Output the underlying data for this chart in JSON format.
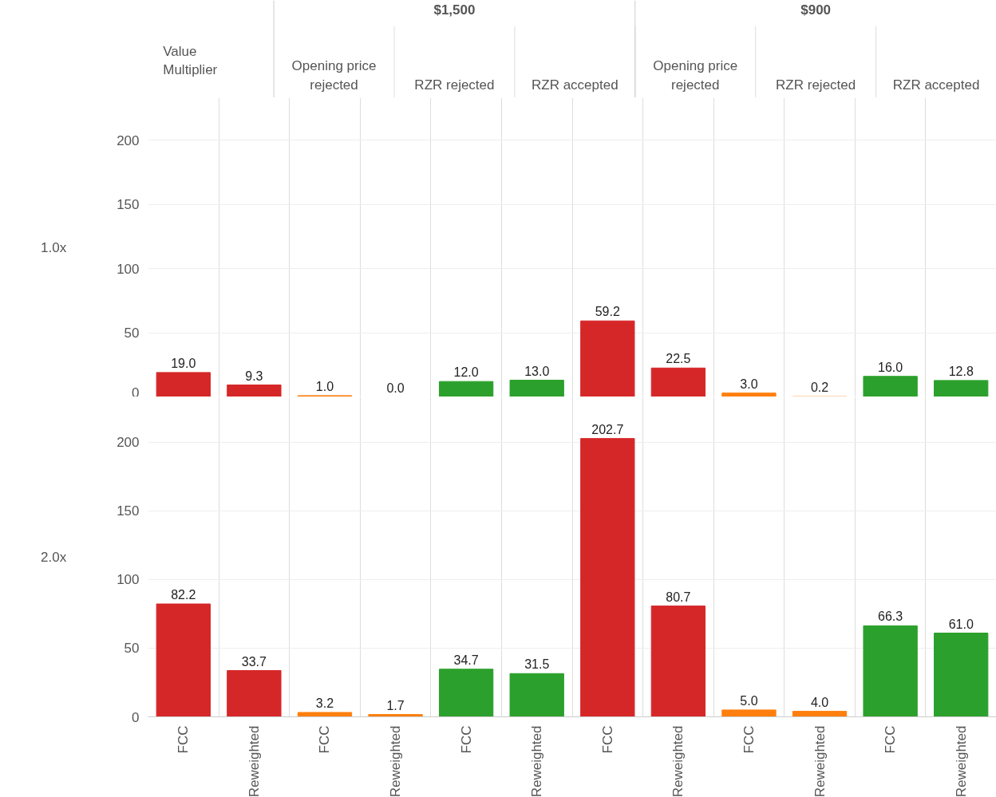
{
  "chart_data": [
    {
      "type": "bar",
      "ylabel": "1.0x",
      "tick_labels": "y",
      "grid": true,
      "ylim": [
        0,
        233
      ],
      "yticks": [
        0,
        50,
        100,
        150,
        200
      ],
      "annotations": [
        "Value Multiplier",
        "$1,500",
        "$900",
        "Opening price rejected",
        "RZR rejected",
        "RZR accepted",
        "Opening price rejected",
        "RZR rejected",
        "RZR accepted"
      ],
      "categories": [
        "FCC",
        "Reweighted",
        "FCC",
        "Reweighted",
        "FCC",
        "Reweighted",
        "FCC",
        "Reweighted",
        "FCC",
        "Reweighted",
        "FCC",
        "Reweighted"
      ],
      "values": [
        19.0,
        9.3,
        1.0,
        0.0,
        12.0,
        13.0,
        59.2,
        22.5,
        3.0,
        0.2,
        16.0,
        12.8
      ],
      "value_labels": [
        "19.0",
        "9.3",
        "1.0",
        "0.0",
        "12.0",
        "13.0",
        "59.2",
        "22.5",
        "3.0",
        "0.2",
        "16.0",
        "12.8"
      ],
      "colors": [
        "#d62728",
        "#d62728",
        "#ff7f0e",
        "#ff7f0e",
        "#2ca02c",
        "#2ca02c",
        "#d62728",
        "#d62728",
        "#ff7f0e",
        "#ff7f0e",
        "#2ca02c",
        "#2ca02c"
      ]
    },
    {
      "type": "bar",
      "ylabel": "2.0x",
      "grid": true,
      "ylim": [
        0,
        233
      ],
      "yticks": [
        0,
        50,
        100,
        150,
        200
      ],
      "categories": [
        "FCC",
        "Reweighted",
        "FCC",
        "Reweighted",
        "FCC",
        "Reweighted",
        "FCC",
        "Reweighted",
        "FCC",
        "Reweighted",
        "FCC",
        "Reweighted"
      ],
      "values": [
        82.2,
        33.7,
        3.2,
        1.7,
        34.7,
        31.5,
        202.7,
        80.7,
        5.0,
        4.0,
        66.3,
        61.0
      ],
      "value_labels": [
        "82.2",
        "33.7",
        "3.2",
        "1.7",
        "34.7",
        "31.5",
        "202.7",
        "80.7",
        "5.0",
        "4.0",
        "66.3",
        "61.0"
      ],
      "colors": [
        "#d62728",
        "#d62728",
        "#ff7f0e",
        "#ff7f0e",
        "#2ca02c",
        "#2ca02c",
        "#d62728",
        "#d62728",
        "#ff7f0e",
        "#ff7f0e",
        "#2ca02c",
        "#2ca02c"
      ]
    }
  ]
}
